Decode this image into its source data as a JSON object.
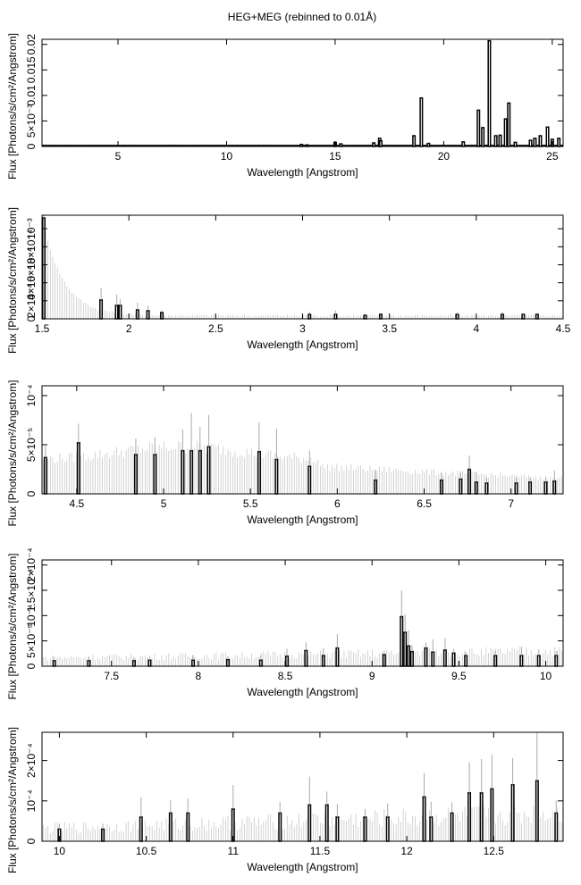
{
  "figure": {
    "title": "HEG+MEG (rebinned to 0.01Å)"
  },
  "chart_data": [
    {
      "type": "line",
      "xlabel": "Wavelength [Angstrom]",
      "ylabel": "Flux [Photons/s/cm²/Angstrom]",
      "xlim": [
        1.5,
        25.5
      ],
      "ylim": [
        0,
        0.021
      ],
      "x_ticks": [
        5,
        10,
        15,
        20,
        25
      ],
      "x_tick_labels": [
        "5",
        "10",
        "15",
        "20",
        "25"
      ],
      "y_ticks": [
        0,
        0.005,
        0.01,
        0.015,
        0.02
      ],
      "y_tick_labels": [
        "0",
        "5×10⁻³",
        "0.01",
        "0.015",
        "0.02"
      ],
      "baseline": 0.0002,
      "x": [
        13.45,
        13.7,
        15.0,
        15.26,
        16.78,
        17.05,
        17.1,
        18.63,
        18.97,
        19.3,
        20.9,
        21.6,
        21.8,
        22.1,
        22.4,
        22.6,
        22.85,
        23.0,
        23.3,
        24.0,
        24.2,
        24.45,
        24.78,
        25.0,
        25.3
      ],
      "y": [
        0.0004,
        0.0003,
        0.0008,
        0.0005,
        0.0007,
        0.0016,
        0.0011,
        0.0021,
        0.0095,
        0.0006,
        0.0009,
        0.0071,
        0.0037,
        0.0207,
        0.0021,
        0.0022,
        0.0054,
        0.0085,
        0.0008,
        0.0012,
        0.0016,
        0.0021,
        0.0038,
        0.0014,
        0.0016
      ],
      "grid": false,
      "legend": "none"
    },
    {
      "type": "line",
      "xlabel": "Wavelength [Angstrom]",
      "ylabel": "Flux [Photons/s/cm²/Angstrom]",
      "xlim": [
        1.5,
        4.5
      ],
      "ylim": [
        0,
        0.00115
      ],
      "x_ticks": [
        1.5,
        2,
        2.5,
        3,
        3.5,
        4,
        4.5
      ],
      "x_tick_labels": [
        "1.5",
        "2",
        "2.5",
        "3",
        "3.5",
        "4",
        "4.5"
      ],
      "y_ticks": [
        0,
        0.0002,
        0.0004,
        0.0006,
        0.0008,
        0.001
      ],
      "y_tick_labels": [
        "0",
        "2×10⁻⁴",
        "4×10⁻⁴",
        "6×10⁻⁴",
        "8×10⁻⁴",
        "10⁻³"
      ],
      "x": [
        1.51,
        1.84,
        1.93,
        1.95,
        2.05,
        2.11,
        2.19,
        3.04,
        3.19,
        3.36,
        3.45,
        3.89,
        4.15,
        4.27,
        4.35
      ],
      "y": [
        0.00112,
        0.00021,
        0.00015,
        0.00015,
        0.0001,
        9e-05,
        7e-05,
        5e-05,
        5e-05,
        4e-05,
        5e-05,
        5e-05,
        5e-05,
        5e-05,
        5e-05
      ],
      "grid": false,
      "legend": "none"
    },
    {
      "type": "line",
      "xlabel": "Wavelength [Angstrom]",
      "ylabel": "Flux [Photons/s/cm²/Angstrom]",
      "xlim": [
        4.3,
        7.3
      ],
      "ylim": [
        0,
        0.00011
      ],
      "x_ticks": [
        4.5,
        5,
        5.5,
        6,
        6.5,
        7
      ],
      "x_tick_labels": [
        "4.5",
        "5",
        "5.5",
        "6",
        "6.5",
        "7"
      ],
      "y_ticks": [
        0,
        5e-05,
        0.0001
      ],
      "y_tick_labels": [
        "0",
        "5×10⁻⁵",
        "10⁻⁴"
      ],
      "x": [
        4.32,
        4.51,
        4.84,
        4.95,
        5.11,
        5.16,
        5.21,
        5.26,
        5.55,
        5.65,
        5.84,
        6.22,
        6.6,
        6.71,
        6.76,
        6.8,
        6.86,
        7.03,
        7.11,
        7.2,
        7.25
      ],
      "y": [
        3.7e-05,
        5.2e-05,
        4e-05,
        4e-05,
        4.4e-05,
        4.4e-05,
        4.4e-05,
        4.8e-05,
        4.3e-05,
        3.5e-05,
        2.8e-05,
        1.4e-05,
        1.4e-05,
        1.5e-05,
        2.5e-05,
        1.2e-05,
        1.1e-05,
        1.1e-05,
        1.2e-05,
        1.2e-05,
        1.3e-05
      ],
      "grid": false,
      "legend": "none"
    },
    {
      "type": "line",
      "xlabel": "Wavelength [Angstrom]",
      "ylabel": "Flux [Photons/s/cm²/Angstrom]",
      "xlim": [
        7.1,
        10.1
      ],
      "ylim": [
        0,
        0.00021
      ],
      "x_ticks": [
        7.5,
        8,
        8.5,
        9,
        9.5,
        10
      ],
      "x_tick_labels": [
        "7.5",
        "8",
        "8.5",
        "9",
        "9.5",
        "10"
      ],
      "y_ticks": [
        0,
        5e-05,
        0.0001,
        0.00015,
        0.0002
      ],
      "y_tick_labels": [
        "0",
        "5×10⁻⁵",
        "10⁻⁴",
        "1.5×10⁻⁴",
        "2×10⁻⁴"
      ],
      "x": [
        7.17,
        7.37,
        7.63,
        7.72,
        7.97,
        8.17,
        8.36,
        8.51,
        8.62,
        8.72,
        8.8,
        9.07,
        9.17,
        9.19,
        9.21,
        9.23,
        9.31,
        9.35,
        9.42,
        9.47,
        9.54,
        9.71,
        9.86,
        9.96,
        10.06
      ],
      "y": [
        1.1e-05,
        1.1e-05,
        1.1e-05,
        1.2e-05,
        1.2e-05,
        1.3e-05,
        1.2e-05,
        2e-05,
        3.1e-05,
        2.1e-05,
        3.6e-05,
        2.3e-05,
        9.8e-05,
        6.7e-05,
        4e-05,
        2.9e-05,
        3.6e-05,
        2.8e-05,
        3.2e-05,
        2.6e-05,
        2.1e-05,
        2.1e-05,
        2.1e-05,
        2.1e-05,
        2.1e-05
      ],
      "grid": false,
      "legend": "none"
    },
    {
      "type": "line",
      "xlabel": "Wavelength [Angstrom]",
      "ylabel": "Flux [Photons/s/cm²/Angstrom]",
      "xlim": [
        9.9,
        12.9
      ],
      "ylim": [
        0,
        0.00027
      ],
      "x_ticks": [
        10,
        10.5,
        11,
        11.5,
        12,
        12.5
      ],
      "x_tick_labels": [
        "10",
        "10.5",
        "11",
        "11.5",
        "12",
        "12.5"
      ],
      "y_ticks": [
        0,
        0.0001,
        0.0002
      ],
      "y_tick_labels": [
        "0",
        "10⁻⁴",
        "2×10⁻⁴"
      ],
      "x": [
        10.0,
        10.25,
        10.47,
        10.64,
        10.74,
        11.0,
        11.27,
        11.44,
        11.54,
        11.6,
        11.76,
        11.89,
        12.1,
        12.14,
        12.26,
        12.36,
        12.43,
        12.49,
        12.61,
        12.75,
        12.86
      ],
      "y": [
        3e-05,
        3e-05,
        6e-05,
        7e-05,
        7e-05,
        8e-05,
        7e-05,
        9e-05,
        9e-05,
        6e-05,
        6e-05,
        6e-05,
        0.00011,
        6e-05,
        7e-05,
        0.00012,
        0.00012,
        0.00013,
        0.00014,
        0.00015,
        7e-05
      ],
      "grid": false,
      "legend": "none"
    }
  ]
}
